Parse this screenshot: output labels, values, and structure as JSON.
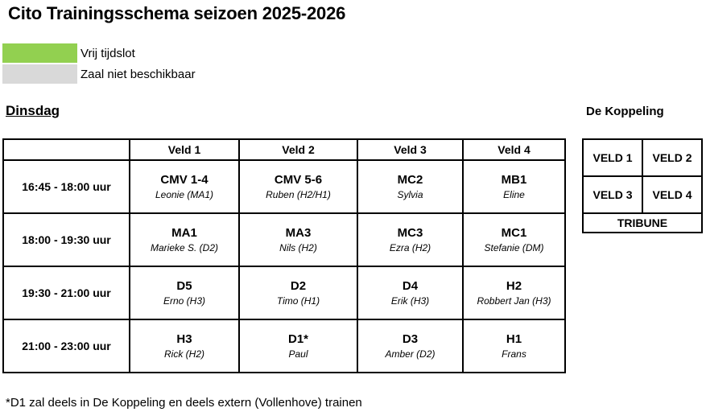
{
  "title": "Cito Trainingsschema seizoen 2025-2026",
  "legend": [
    {
      "label": "Vrij tijdslot",
      "color": "#92d050"
    },
    {
      "label": "Zaal niet beschikbaar",
      "color": "#d9d9d9"
    }
  ],
  "day": "Dinsdag",
  "columns": [
    "Veld 1",
    "Veld 2",
    "Veld 3",
    "Veld 4"
  ],
  "rows": [
    {
      "time": "16:45 - 18:00 uur",
      "slots": [
        {
          "team": "CMV 1-4",
          "trainer": "Leonie (MA1)"
        },
        {
          "team": "CMV 5-6",
          "trainer": "Ruben (H2/H1)"
        },
        {
          "team": "MC2",
          "trainer": "Sylvia"
        },
        {
          "team": "MB1",
          "trainer": "Eline"
        }
      ]
    },
    {
      "time": "18:00 - 19:30 uur",
      "slots": [
        {
          "team": "MA1",
          "trainer": "Marieke S. (D2)"
        },
        {
          "team": "MA3",
          "trainer": "Nils (H2)"
        },
        {
          "team": "MC3",
          "trainer": "Ezra (H2)"
        },
        {
          "team": "MC1",
          "trainer": "Stefanie (DM)"
        }
      ]
    },
    {
      "time": "19:30 - 21:00 uur",
      "slots": [
        {
          "team": "D5",
          "trainer": "Erno (H3)"
        },
        {
          "team": "D2",
          "trainer": "Timo (H1)"
        },
        {
          "team": "D4",
          "trainer": "Erik (H3)"
        },
        {
          "team": "H2",
          "trainer": "Robbert Jan (H3)"
        }
      ]
    },
    {
      "time": "21:00 - 23:00 uur",
      "slots": [
        {
          "team": "H3",
          "trainer": "Rick (H2)"
        },
        {
          "team": "D1*",
          "trainer": "Paul"
        },
        {
          "team": "D3",
          "trainer": "Amber (D2)"
        },
        {
          "team": "H1",
          "trainer": "Frans"
        }
      ]
    }
  ],
  "koppeling": {
    "title": "De Koppeling",
    "fields": [
      "VELD 1",
      "VELD 2",
      "VELD 3",
      "VELD 4"
    ],
    "tribune": "TRIBUNE"
  },
  "footnote": "*D1 zal deels in De Koppeling en deels extern (Vollenhove) trainen"
}
